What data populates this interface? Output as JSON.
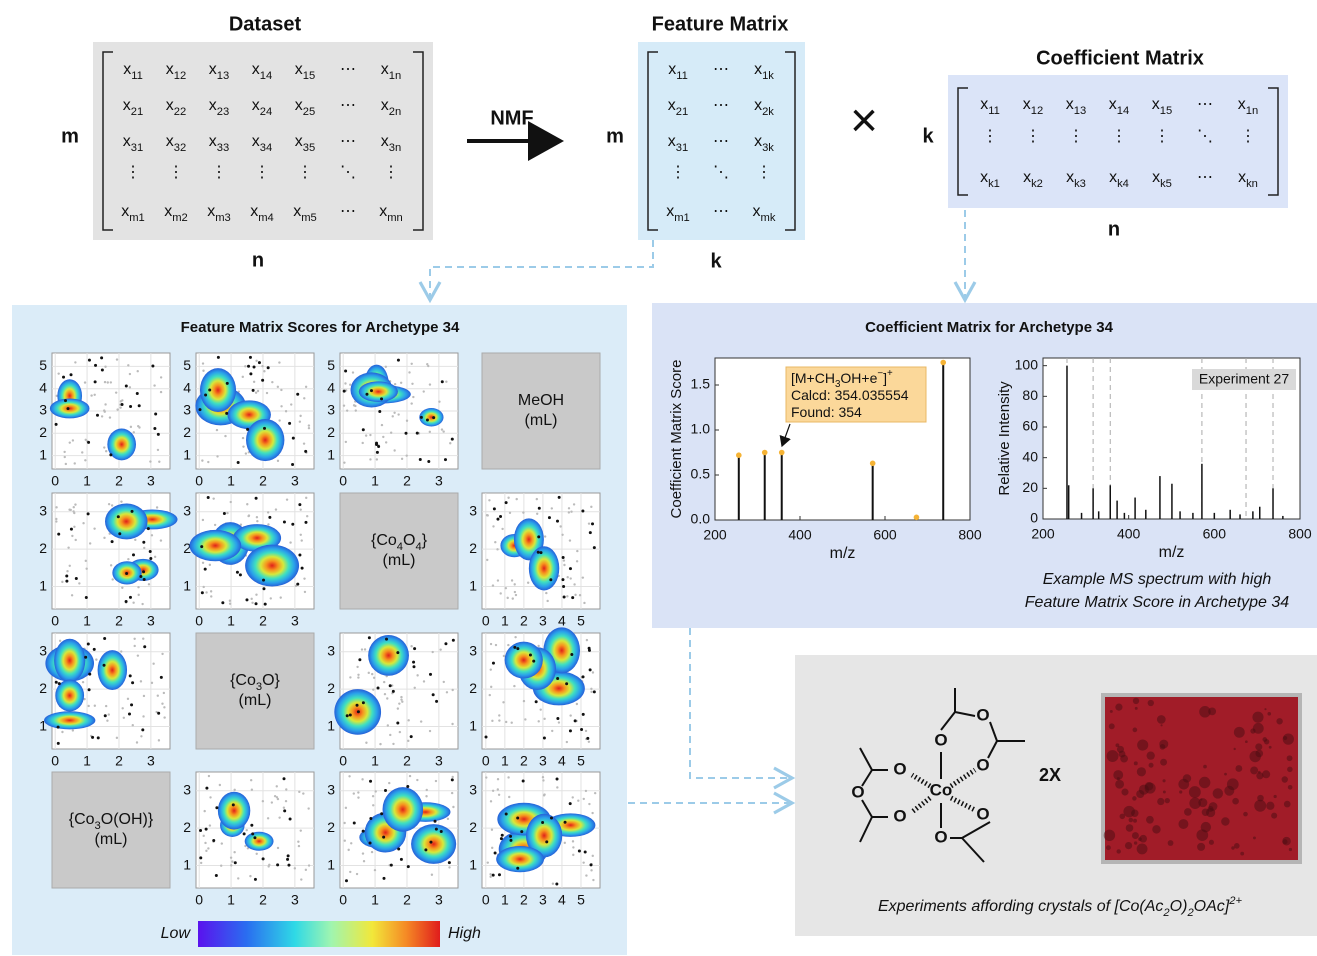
{
  "dataset": {
    "title": "Dataset",
    "rows_label": "m",
    "cols_label": "n",
    "rows": [
      [
        [
          "x",
          "11"
        ],
        [
          "x",
          "12"
        ],
        [
          "x",
          "13"
        ],
        [
          "x",
          "14"
        ],
        [
          "x",
          "15"
        ],
        [
          "⋯"
        ],
        [
          "x",
          "1n"
        ]
      ],
      [
        [
          "x",
          "21"
        ],
        [
          "x",
          "22"
        ],
        [
          "x",
          "23"
        ],
        [
          "x",
          "24"
        ],
        [
          "x",
          "25"
        ],
        [
          "⋯"
        ],
        [
          "x",
          "2n"
        ]
      ],
      [
        [
          "x",
          "31"
        ],
        [
          "x",
          "32"
        ],
        [
          "x",
          "33"
        ],
        [
          "x",
          "34"
        ],
        [
          "x",
          "35"
        ],
        [
          "⋯"
        ],
        [
          "x",
          "3n"
        ]
      ],
      [
        [
          "⋮"
        ],
        [
          "⋮"
        ],
        [
          "⋮"
        ],
        [
          "⋮"
        ],
        [
          "⋮"
        ],
        [
          "⋱"
        ],
        [
          "⋮"
        ]
      ],
      [
        [
          "x",
          "m1"
        ],
        [
          "x",
          "m2"
        ],
        [
          "x",
          "m3"
        ],
        [
          "x",
          "m4"
        ],
        [
          "x",
          "m5"
        ],
        [
          "⋯"
        ],
        [
          "x",
          "mn"
        ]
      ]
    ]
  },
  "nmf": "NMF",
  "feature_matrix": {
    "title": "Feature Matrix",
    "rows_label": "m",
    "cols_label": "k",
    "rows": [
      [
        [
          "x",
          "11"
        ],
        [
          "⋯"
        ],
        [
          "x",
          "1k"
        ]
      ],
      [
        [
          "x",
          "21"
        ],
        [
          "⋯"
        ],
        [
          "x",
          "2k"
        ]
      ],
      [
        [
          "x",
          "31"
        ],
        [
          "⋯"
        ],
        [
          "x",
          "3k"
        ]
      ],
      [
        [
          "⋮"
        ],
        [
          "⋱"
        ],
        [
          "⋮"
        ]
      ],
      [
        [
          "x",
          "m1"
        ],
        [
          "⋯"
        ],
        [
          "x",
          "mk"
        ]
      ]
    ]
  },
  "times": "×",
  "coefficient_matrix": {
    "title": "Coefficient Matrix",
    "rows_label": "k",
    "cols_label": "n",
    "rows": [
      [
        [
          "x",
          "11"
        ],
        [
          "x",
          "12"
        ],
        [
          "x",
          "13"
        ],
        [
          "x",
          "14"
        ],
        [
          "x",
          "15"
        ],
        [
          "⋯"
        ],
        [
          "x",
          "1n"
        ]
      ],
      [
        [
          "⋮"
        ],
        [
          "⋮"
        ],
        [
          "⋮"
        ],
        [
          "⋮"
        ],
        [
          "⋮"
        ],
        [
          "⋱"
        ],
        [
          "⋮"
        ]
      ],
      [
        [
          "x",
          "k1"
        ],
        [
          "x",
          "k2"
        ],
        [
          "x",
          "k3"
        ],
        [
          "x",
          "k4"
        ],
        [
          "x",
          "k5"
        ],
        [
          "⋯"
        ],
        [
          "x",
          "kn"
        ]
      ]
    ]
  },
  "scores": {
    "title": "Feature Matrix Scores for Archetype 34",
    "grid": [
      [
        {
          "xlim": [
            -0.1,
            3.6
          ],
          "xticks": [
            0,
            1,
            2,
            3
          ],
          "ylim": [
            0.4,
            5.6
          ],
          "yticks": [
            1,
            2,
            3,
            4,
            5
          ]
        },
        {
          "xlim": [
            -0.1,
            3.6
          ],
          "xticks": [
            0,
            1,
            2,
            3
          ],
          "ylim": [
            0.4,
            5.6
          ],
          "yticks": [
            1,
            2,
            3,
            4,
            5
          ]
        },
        {
          "xlim": [
            -0.1,
            3.6
          ],
          "xticks": [
            0,
            1,
            2,
            3
          ],
          "ylim": [
            0.4,
            5.6
          ],
          "yticks": [
            1,
            2,
            3,
            4,
            5
          ]
        },
        {
          "label": [
            [
              [
                "MeOH",
                0
              ]
            ],
            [
              [
                "(mL)",
                0
              ]
            ]
          ]
        }
      ],
      [
        {
          "xlim": [
            -0.1,
            3.6
          ],
          "xticks": [
            0,
            1,
            2,
            3
          ],
          "ylim": [
            0.4,
            3.5
          ],
          "yticks": [
            1,
            2,
            3
          ]
        },
        {
          "xlim": [
            -0.1,
            3.6
          ],
          "xticks": [
            0,
            1,
            2,
            3
          ],
          "ylim": [
            0.4,
            3.5
          ],
          "yticks": [
            1,
            2,
            3
          ]
        },
        {
          "label": [
            [
              [
                "{Co",
                0
              ],
              [
                "4",
                1
              ],
              [
                "O",
                0
              ],
              [
                "4",
                1
              ],
              [
                "}",
                0
              ]
            ],
            [
              [
                "(mL)",
                0
              ]
            ]
          ]
        },
        {
          "xlim": [
            -0.2,
            6
          ],
          "xticks": [
            0,
            1,
            2,
            3,
            4,
            5
          ],
          "ylim": [
            0.4,
            3.5
          ],
          "yticks": [
            1,
            2,
            3
          ]
        }
      ],
      [
        {
          "xlim": [
            -0.1,
            3.6
          ],
          "xticks": [
            0,
            1,
            2,
            3
          ],
          "ylim": [
            0.4,
            3.5
          ],
          "yticks": [
            1,
            2,
            3
          ]
        },
        {
          "label": [
            [
              [
                "{Co",
                0
              ],
              [
                "3",
                1
              ],
              [
                "O}",
                0
              ]
            ],
            [
              [
                "(mL)",
                0
              ]
            ]
          ]
        },
        {
          "xlim": [
            -0.1,
            3.6
          ],
          "xticks": [
            0,
            1,
            2,
            3
          ],
          "ylim": [
            0.4,
            3.5
          ],
          "yticks": [
            1,
            2,
            3
          ]
        },
        {
          "xlim": [
            -0.2,
            6
          ],
          "xticks": [
            0,
            1,
            2,
            3,
            4,
            5
          ],
          "ylim": [
            0.4,
            3.5
          ],
          "yticks": [
            1,
            2,
            3
          ]
        }
      ],
      [
        {
          "label": [
            [
              [
                "{Co",
                0
              ],
              [
                "3",
                1
              ],
              [
                "O(OH)}",
                0
              ]
            ],
            [
              [
                "(mL)",
                0
              ]
            ]
          ]
        },
        {
          "xlim": [
            -0.1,
            3.6
          ],
          "xticks": [
            0,
            1,
            2,
            3
          ],
          "ylim": [
            0.4,
            3.5
          ],
          "yticks": [
            1,
            2,
            3
          ]
        },
        {
          "xlim": [
            -0.1,
            3.6
          ],
          "xticks": [
            0,
            1,
            2,
            3
          ],
          "ylim": [
            0.4,
            3.5
          ],
          "yticks": [
            1,
            2,
            3
          ]
        },
        {
          "xlim": [
            -0.2,
            6
          ],
          "xticks": [
            0,
            1,
            2,
            3,
            4,
            5
          ],
          "ylim": [
            0.4,
            3.5
          ],
          "yticks": [
            1,
            2,
            3
          ]
        }
      ]
    ],
    "colorbar": {
      "low": "Low",
      "high": "High"
    }
  },
  "coefficients": {
    "title": "Coefficient Matrix for Archetype 34",
    "plot": {
      "xlabel": "m/z",
      "ylabel": "Coefficient Matrix Score",
      "xlim": [
        200,
        800
      ],
      "xticks": [
        200,
        400,
        600,
        800
      ],
      "ylim": [
        0,
        1.8
      ],
      "yticks": [
        {
          "value": 0,
          "label": "0.0"
        },
        {
          "value": 0.5,
          "label": "0.5"
        },
        {
          "value": 1,
          "label": "1.0"
        },
        {
          "value": 1.5,
          "label": "1.5"
        }
      ],
      "x": [
        256,
        317,
        357,
        571,
        674,
        737
      ],
      "values": [
        0.72,
        0.75,
        0.75,
        0.63,
        0.03,
        1.75
      ],
      "annotation": [
        [
          [
            "[M+CH",
            0
          ],
          [
            "3",
            1
          ],
          [
            "OH+e",
            0
          ],
          [
            "−",
            2
          ],
          [
            "]",
            0
          ],
          [
            "+",
            2
          ]
        ],
        [
          [
            "Calcd: 354.035554",
            0
          ]
        ],
        [
          [
            "Found: 354",
            0
          ]
        ]
      ]
    },
    "spectrum": {
      "xlabel": "m/z",
      "ylabel": "Relative Intensity",
      "label": "Experiment 27",
      "xlim": [
        200,
        800
      ],
      "xticks": [
        200,
        400,
        600,
        800
      ],
      "ylim": [
        0,
        105
      ],
      "yticks": [
        0,
        20,
        40,
        60,
        80,
        100
      ],
      "x": [
        256,
        260,
        290,
        317,
        330,
        357,
        373,
        390,
        415,
        440,
        473,
        501,
        520,
        550,
        571,
        600,
        637,
        660,
        690,
        706,
        737,
        760
      ],
      "values": [
        100,
        22,
        4,
        20,
        5,
        22,
        12,
        4,
        14,
        6,
        28,
        23,
        5,
        4,
        36,
        4,
        6,
        3,
        5,
        8,
        20,
        2
      ],
      "dashed": [
        256,
        317,
        357,
        571,
        674,
        737
      ],
      "caption": [
        "Example MS spectrum with high",
        "Feature Matrix Score in Archetype 34"
      ]
    }
  },
  "crystals": {
    "atoms": [
      "Co",
      "O",
      "O",
      "O",
      "O",
      "O",
      "O",
      "O",
      "O"
    ],
    "multiplier": "2X",
    "caption": [
      [
        "Experiments affording crystals of [Co(Ac",
        0
      ],
      [
        "2",
        1
      ],
      [
        "O)",
        0
      ],
      [
        "2",
        1
      ],
      [
        "OAc]",
        0
      ],
      [
        "2+",
        2
      ]
    ]
  }
}
